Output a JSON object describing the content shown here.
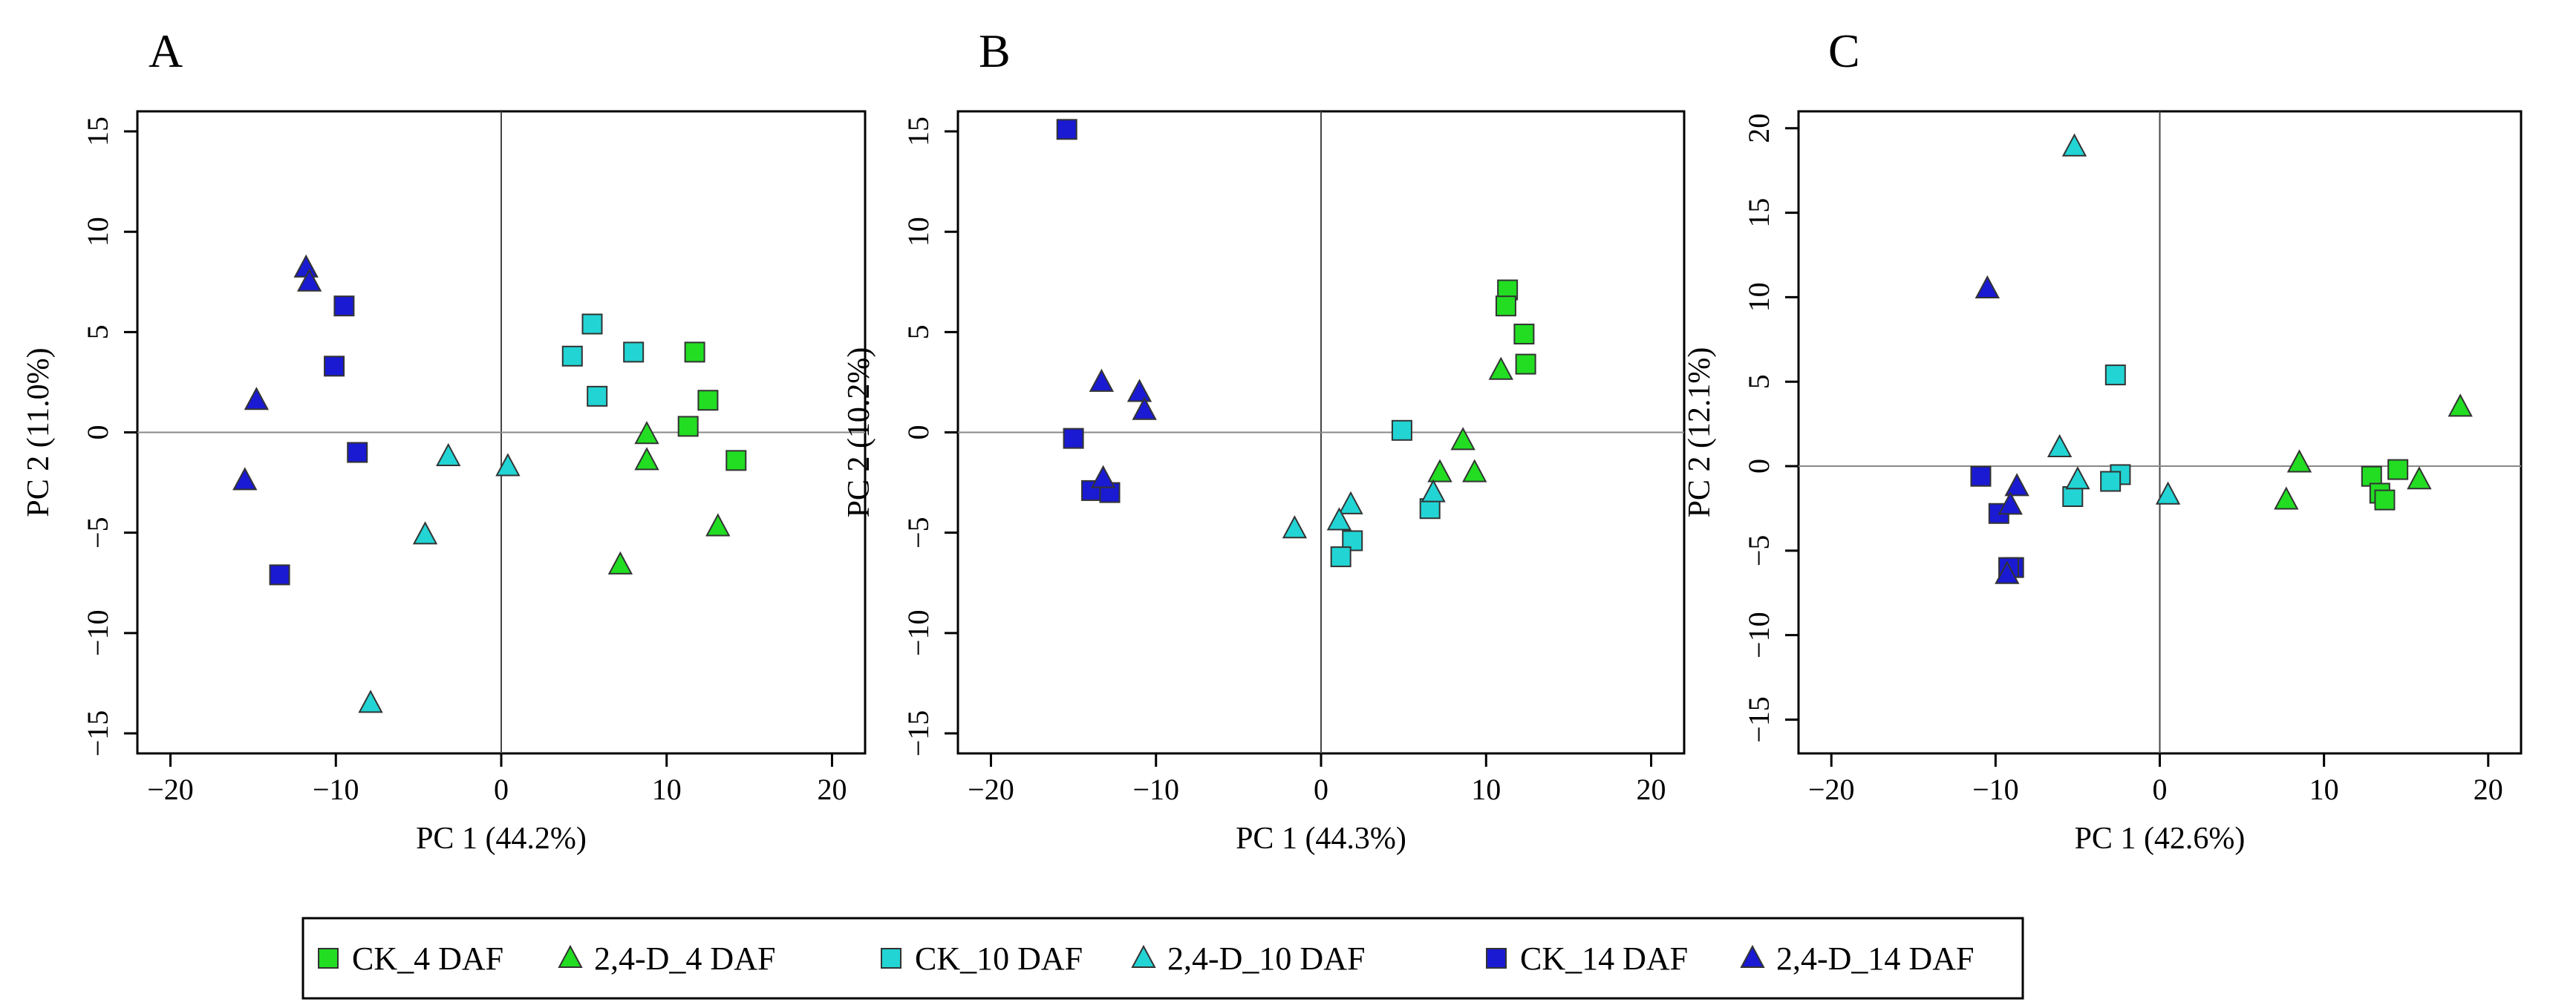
{
  "legend": [
    {
      "label": "CK_4 DAF",
      "marker": "square",
      "color": "#22dd22"
    },
    {
      "label": "2,4-D_4 DAF",
      "marker": "triangle",
      "color": "#22dd22"
    },
    {
      "label": "CK_10 DAF",
      "marker": "square",
      "color": "#22d4d4"
    },
    {
      "label": "2,4-D_10 DAF",
      "marker": "triangle",
      "color": "#22d4d4"
    },
    {
      "label": "CK_14 DAF",
      "marker": "square",
      "color": "#1a1ad2"
    },
    {
      "label": "2,4-D_14 DAF",
      "marker": "triangle",
      "color": "#1a1ad2"
    }
  ],
  "chart_data": [
    {
      "type": "scatter",
      "panel": "A",
      "xlabel": "PC 1 (44.2%)",
      "ylabel": "PC 2 (11.0%)",
      "xlim": [
        -22,
        22
      ],
      "ylim": [
        -16,
        16
      ],
      "xticks": [
        -20,
        -10,
        0,
        10,
        20
      ],
      "yticks": [
        -15,
        -10,
        -5,
        0,
        5,
        10,
        15
      ],
      "xtick_labels": [
        "−20",
        "−10",
        "0",
        "10",
        "20"
      ],
      "ytick_labels": [
        "−15",
        "−10",
        "−5",
        "0",
        "5",
        "10",
        "15"
      ],
      "series": [
        {
          "name": "CK_4 DAF",
          "points": [
            [
              11.7,
              4.0
            ],
            [
              12.5,
              1.6
            ],
            [
              11.3,
              0.3
            ],
            [
              14.2,
              -1.4
            ]
          ]
        },
        {
          "name": "2,4-D_4 DAF",
          "points": [
            [
              8.8,
              -0.1
            ],
            [
              8.8,
              -1.4
            ],
            [
              13.1,
              -4.7
            ],
            [
              7.2,
              -6.6
            ]
          ]
        },
        {
          "name": "CK_10 DAF",
          "points": [
            [
              5.5,
              5.4
            ],
            [
              4.3,
              3.8
            ],
            [
              8.0,
              4.0
            ],
            [
              5.8,
              1.8
            ]
          ]
        },
        {
          "name": "2,4-D_10 DAF",
          "points": [
            [
              -3.2,
              -1.2
            ],
            [
              0.4,
              -1.7
            ],
            [
              -4.6,
              -5.1
            ],
            [
              -7.9,
              -13.5
            ]
          ]
        },
        {
          "name": "CK_14 DAF",
          "points": [
            [
              -9.5,
              6.3
            ],
            [
              -10.1,
              3.3
            ],
            [
              -8.7,
              -1.0
            ],
            [
              -13.4,
              -7.1
            ]
          ]
        },
        {
          "name": "2,4-D_14 DAF",
          "points": [
            [
              -11.8,
              8.2
            ],
            [
              -11.6,
              7.5
            ],
            [
              -14.8,
              1.6
            ],
            [
              -15.5,
              -2.4
            ]
          ]
        }
      ]
    },
    {
      "type": "scatter",
      "panel": "B",
      "xlabel": "PC 1 (44.3%)",
      "ylabel": "PC 2 (10.2%)",
      "xlim": [
        -22,
        22
      ],
      "ylim": [
        -16,
        16
      ],
      "xticks": [
        -20,
        -10,
        0,
        10,
        20
      ],
      "yticks": [
        -15,
        -10,
        -5,
        0,
        5,
        10,
        15
      ],
      "xtick_labels": [
        "−20",
        "−10",
        "0",
        "10",
        "20"
      ],
      "ytick_labels": [
        "−15",
        "−10",
        "−5",
        "0",
        "5",
        "10",
        "15"
      ],
      "series": [
        {
          "name": "CK_4 DAF",
          "points": [
            [
              11.3,
              7.1
            ],
            [
              11.2,
              6.3
            ],
            [
              12.3,
              4.9
            ],
            [
              12.4,
              3.4
            ]
          ]
        },
        {
          "name": "2,4-D_4 DAF",
          "points": [
            [
              10.9,
              3.1
            ],
            [
              8.6,
              -0.4
            ],
            [
              7.2,
              -2.0
            ],
            [
              9.3,
              -2.0
            ]
          ]
        },
        {
          "name": "CK_10 DAF",
          "points": [
            [
              4.9,
              0.1
            ],
            [
              6.6,
              -3.8
            ],
            [
              1.9,
              -5.4
            ],
            [
              1.2,
              -6.2
            ]
          ]
        },
        {
          "name": "2,4-D_10 DAF",
          "points": [
            [
              6.8,
              -3.0
            ],
            [
              1.8,
              -3.6
            ],
            [
              1.1,
              -4.4
            ],
            [
              -1.6,
              -4.8
            ]
          ]
        },
        {
          "name": "CK_14 DAF",
          "points": [
            [
              -15.4,
              15.1
            ],
            [
              -15.0,
              -0.3
            ],
            [
              -13.9,
              -2.9
            ],
            [
              -12.8,
              -3.0
            ]
          ]
        },
        {
          "name": "2,4-D_14 DAF",
          "points": [
            [
              -13.3,
              2.5
            ],
            [
              -11.0,
              2.0
            ],
            [
              -10.7,
              1.1
            ],
            [
              -13.2,
              -2.3
            ]
          ]
        }
      ]
    },
    {
      "type": "scatter",
      "panel": "C",
      "xlabel": "PC 1 (42.6%)",
      "ylabel": "PC 2 (12.1%)",
      "xlim": [
        -22,
        22
      ],
      "ylim": [
        -17,
        21
      ],
      "xticks": [
        -20,
        -10,
        0,
        10,
        20
      ],
      "yticks": [
        -15,
        -10,
        -5,
        0,
        5,
        10,
        15,
        20
      ],
      "xtick_labels": [
        "−20",
        "−10",
        "0",
        "10",
        "20"
      ],
      "ytick_labels": [
        "−15",
        "−10",
        "−5",
        "0",
        "5",
        "10",
        "15",
        "20"
      ],
      "series": [
        {
          "name": "CK_4 DAF",
          "points": [
            [
              12.9,
              -0.6
            ],
            [
              14.5,
              -0.2
            ],
            [
              13.4,
              -1.6
            ],
            [
              13.7,
              -2.0
            ]
          ]
        },
        {
          "name": "2,4-D_4 DAF",
          "points": [
            [
              18.3,
              3.5
            ],
            [
              8.5,
              0.2
            ],
            [
              15.8,
              -0.8
            ],
            [
              7.7,
              -2.0
            ]
          ]
        },
        {
          "name": "CK_10 DAF",
          "points": [
            [
              -2.7,
              5.4
            ],
            [
              -2.4,
              -0.5
            ],
            [
              -3.0,
              -0.9
            ],
            [
              -5.3,
              -1.8
            ]
          ]
        },
        {
          "name": "2,4-D_10 DAF",
          "points": [
            [
              -5.2,
              18.9
            ],
            [
              -6.1,
              1.1
            ],
            [
              -5.0,
              -0.8
            ],
            [
              0.5,
              -1.7
            ]
          ]
        },
        {
          "name": "CK_14 DAF",
          "points": [
            [
              -10.9,
              -0.6
            ],
            [
              -9.8,
              -2.8
            ],
            [
              -8.9,
              -6.0
            ],
            [
              -9.2,
              -6.0
            ]
          ]
        },
        {
          "name": "2,4-D_14 DAF",
          "points": [
            [
              -10.5,
              10.5
            ],
            [
              -8.7,
              -1.2
            ],
            [
              -9.1,
              -2.3
            ],
            [
              -9.3,
              -6.4
            ]
          ]
        }
      ]
    }
  ],
  "panel_labels": [
    "A",
    "B",
    "C"
  ]
}
